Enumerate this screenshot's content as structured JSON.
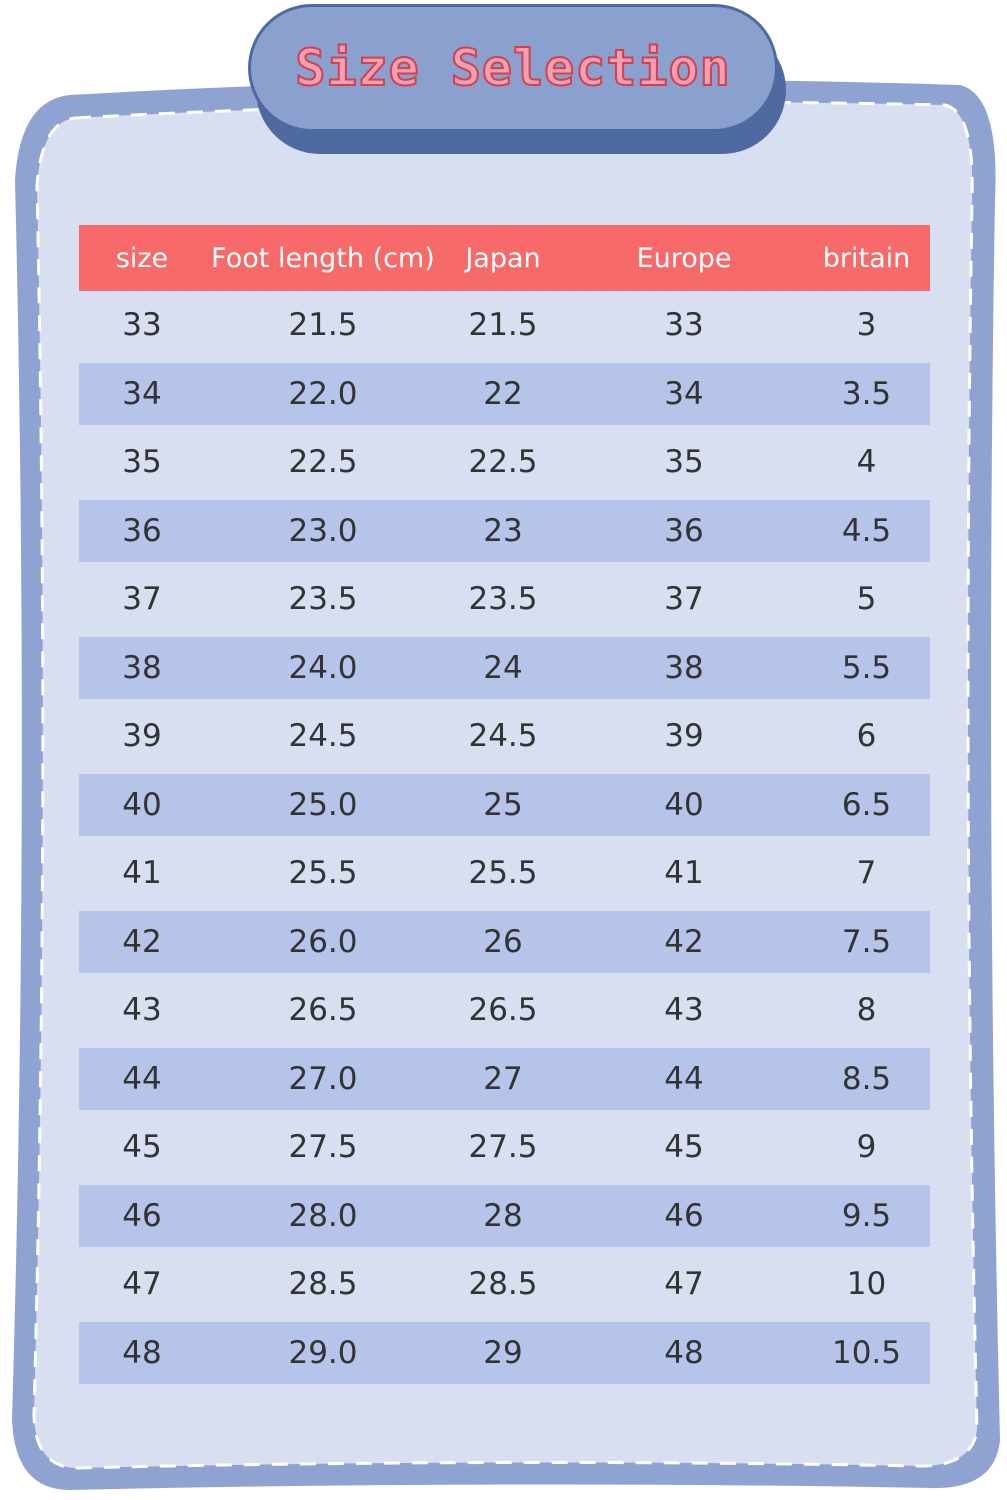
{
  "title": "Size Selection",
  "colors": {
    "header": "#f76a6a",
    "background": "#d7dff0",
    "stripe": "#b6c4ea",
    "border": "#8fa3d3",
    "title_pill": "#8aa0cf",
    "title_text": "#d3404f"
  },
  "table": {
    "headers": [
      "size",
      "Foot length (cm)",
      "Japan",
      "Europe",
      "britain"
    ],
    "rows": [
      [
        "33",
        "21.5",
        "21.5",
        "33",
        "3"
      ],
      [
        "34",
        "22.0",
        "22",
        "34",
        "3.5"
      ],
      [
        "35",
        "22.5",
        "22.5",
        "35",
        "4"
      ],
      [
        "36",
        "23.0",
        "23",
        "36",
        "4.5"
      ],
      [
        "37",
        "23.5",
        "23.5",
        "37",
        "5"
      ],
      [
        "38",
        "24.0",
        "24",
        "38",
        "5.5"
      ],
      [
        "39",
        "24.5",
        "24.5",
        "39",
        "6"
      ],
      [
        "40",
        "25.0",
        "25",
        "40",
        "6.5"
      ],
      [
        "41",
        "25.5",
        "25.5",
        "41",
        "7"
      ],
      [
        "42",
        "26.0",
        "26",
        "42",
        "7.5"
      ],
      [
        "43",
        "26.5",
        "26.5",
        "43",
        "8"
      ],
      [
        "44",
        "27.0",
        "27",
        "44",
        "8.5"
      ],
      [
        "45",
        "27.5",
        "27.5",
        "45",
        "9"
      ],
      [
        "46",
        "28.0",
        "28",
        "46",
        "9.5"
      ],
      [
        "47",
        "28.5",
        "28.5",
        "47",
        "10"
      ],
      [
        "48",
        "29.0",
        "29",
        "48",
        "10.5"
      ]
    ]
  }
}
